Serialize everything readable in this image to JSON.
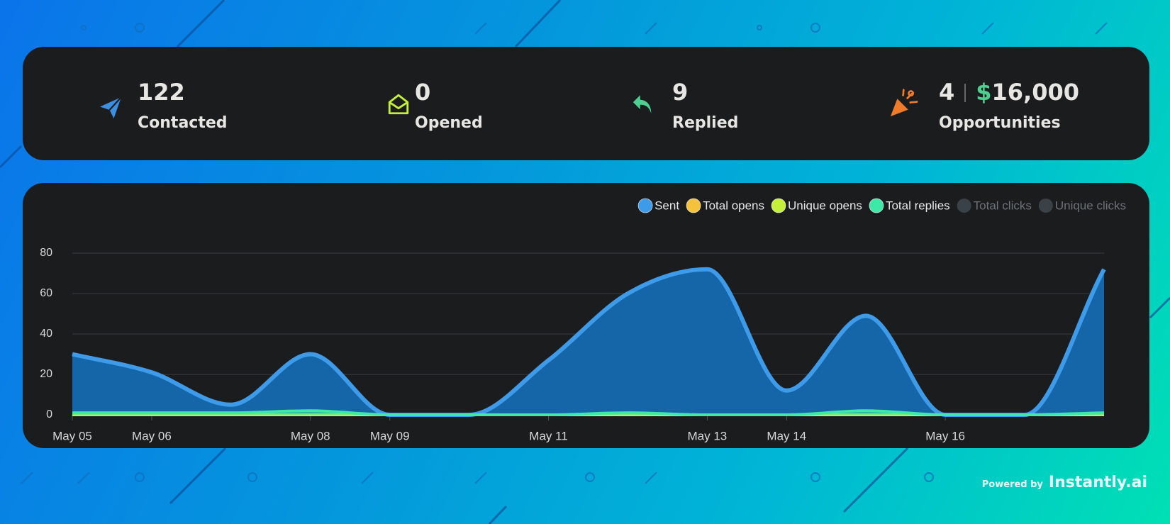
{
  "stats": [
    {
      "value": "122",
      "label": "Contacted"
    },
    {
      "value": "0",
      "label": "Opened"
    },
    {
      "value": "9",
      "label": "Replied"
    },
    {
      "value": "4",
      "currency": "$",
      "amount": "16,000",
      "label": "Opportunities"
    }
  ],
  "chart_data": {
    "type": "area",
    "categories": [
      "May 05",
      "May 06",
      null,
      "May 08",
      "May 09",
      null,
      "May 11",
      null,
      "May 13",
      "May 14",
      null,
      "May 16",
      null,
      null
    ],
    "series": [
      {
        "name": "Sent",
        "color": "#3d9be9",
        "fill": "#1566a8",
        "values": [
          30,
          21,
          5,
          30,
          0,
          0,
          27,
          60,
          72,
          12,
          49,
          0,
          0,
          72
        ]
      },
      {
        "name": "Total opens",
        "color": "#f5c33b",
        "values": [
          0,
          0,
          0,
          0,
          0,
          0,
          0,
          0,
          0,
          0,
          0,
          0,
          0,
          0
        ]
      },
      {
        "name": "Unique opens",
        "color": "#c5f03a",
        "values": [
          0,
          0,
          0,
          0,
          0,
          0,
          0,
          0,
          0,
          0,
          0,
          0,
          0,
          0
        ]
      },
      {
        "name": "Total replies",
        "color": "#3ee8a6",
        "values": [
          1,
          1,
          1,
          2,
          0,
          0,
          0,
          1,
          0,
          0,
          2,
          0,
          0,
          1
        ]
      }
    ],
    "legend_hidden": [
      "Total clicks",
      "Unique clicks"
    ],
    "ylim": [
      0,
      80
    ],
    "yticks": [
      0,
      20,
      40,
      60,
      80
    ],
    "grid": true
  },
  "footer": {
    "prefix": "Powered by",
    "brand": "Instantly.ai"
  }
}
